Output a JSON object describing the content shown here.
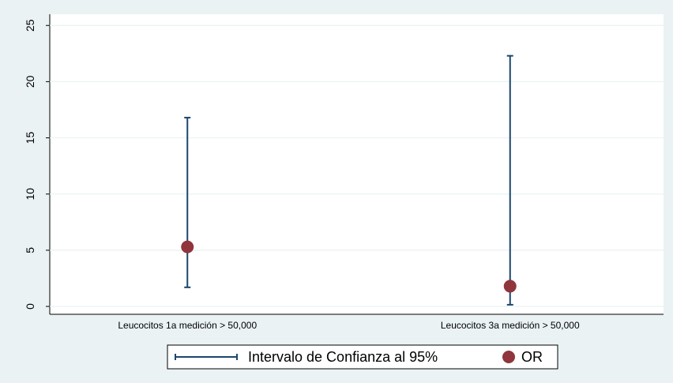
{
  "chart_data": {
    "type": "errorbar",
    "categories": [
      "Leucocitos 1a medición > 50,000",
      "Leucocitos 3a medición > 50,000"
    ],
    "series": [
      {
        "name": "Intervalo de Confianza al 95%",
        "color": "#1a476f",
        "low": [
          1.7,
          0.15
        ],
        "high": [
          16.8,
          22.3
        ]
      },
      {
        "name": "OR",
        "color": "#90353b",
        "values": [
          5.3,
          1.8
        ]
      }
    ],
    "ylim": [
      -0.7,
      26
    ],
    "yticks": [
      0,
      5,
      10,
      15,
      20,
      25
    ],
    "grid": true
  }
}
